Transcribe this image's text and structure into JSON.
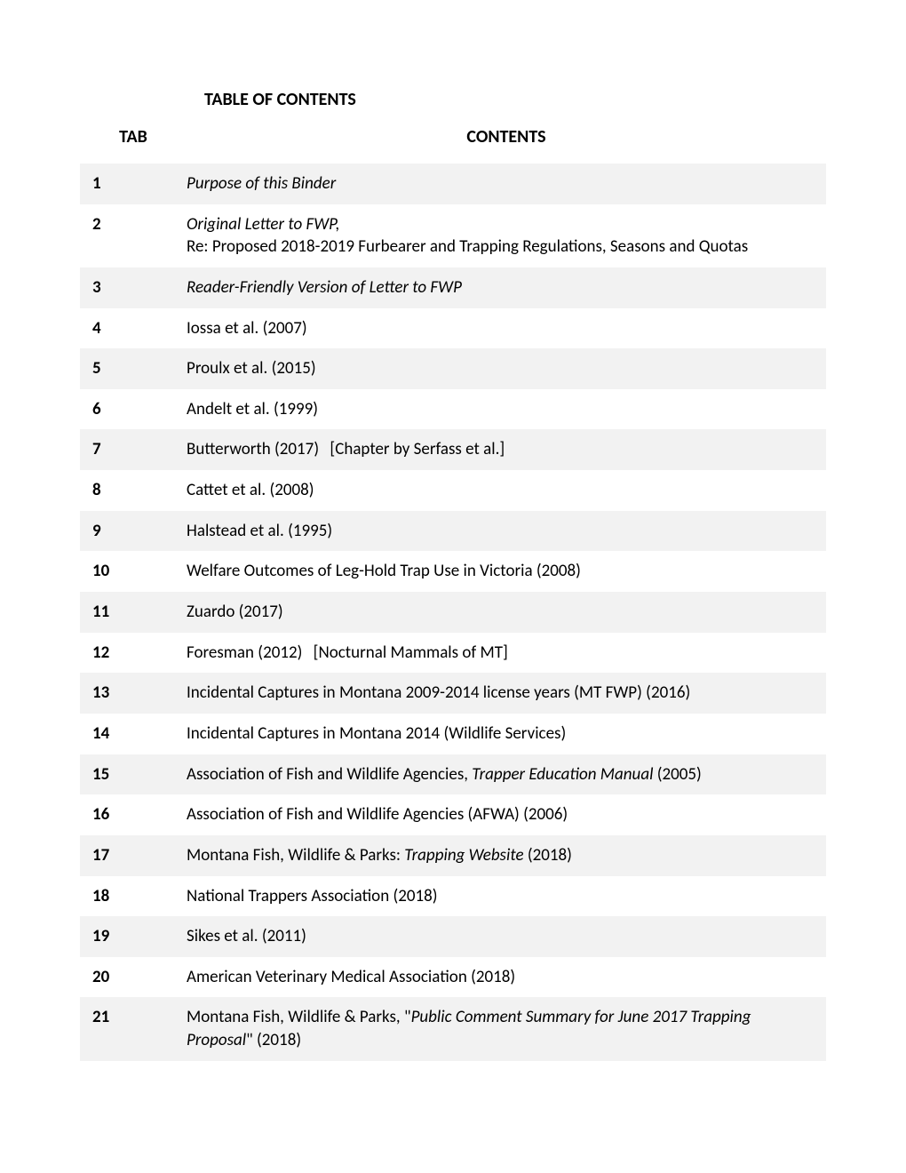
{
  "title": "TABLE OF CONTENTS",
  "headers": {
    "tab": "TAB",
    "contents": "CONTENTS"
  },
  "rows": [
    {
      "tab": "1",
      "shaded": true,
      "segments": [
        {
          "text": "Purpose of this Binder",
          "style": "italic"
        }
      ]
    },
    {
      "tab": "2",
      "shaded": false,
      "segments": [
        {
          "text": "Original Letter to FWP,",
          "style": "italic"
        },
        {
          "text": "\nRe: Proposed 2018-2019 Furbearer and Trapping Regulations, Seasons and Quotas"
        }
      ]
    },
    {
      "tab": "3",
      "shaded": true,
      "segments": [
        {
          "text": "Reader-Friendly Version of Letter to FWP",
          "style": "italic"
        }
      ]
    },
    {
      "tab": "4",
      "shaded": false,
      "segments": [
        {
          "text": "Iossa et al. (2007)"
        }
      ]
    },
    {
      "tab": "5",
      "shaded": true,
      "segments": [
        {
          "text": "Proulx et al. (2015)"
        }
      ]
    },
    {
      "tab": "6",
      "shaded": false,
      "segments": [
        {
          "text": "Andelt et al. (1999)"
        }
      ]
    },
    {
      "tab": "7",
      "shaded": true,
      "segments": [
        {
          "text": "Butterworth (2017)"
        },
        {
          "text": "   [Chapter by Serfass et al.]",
          "style": "bracket"
        }
      ]
    },
    {
      "tab": "8",
      "shaded": false,
      "segments": [
        {
          "text": "Cattet et al. (2008)"
        }
      ]
    },
    {
      "tab": "9",
      "shaded": true,
      "segments": [
        {
          "text": "Halstead et al. (1995)"
        }
      ]
    },
    {
      "tab": "10",
      "shaded": false,
      "segments": [
        {
          "text": "Welfare Outcomes of Leg-Hold Trap Use in Victoria (2008)"
        }
      ]
    },
    {
      "tab": "11",
      "shaded": true,
      "segments": [
        {
          "text": "Zuardo (2017)"
        }
      ]
    },
    {
      "tab": "12",
      "shaded": false,
      "segments": [
        {
          "text": "Foresman (2012)"
        },
        {
          "text": "   [Nocturnal Mammals of MT]",
          "style": "bracket"
        }
      ]
    },
    {
      "tab": "13",
      "shaded": true,
      "segments": [
        {
          "text": "Incidental Captures in Montana 2009-2014 license years (MT FWP) (2016)"
        }
      ]
    },
    {
      "tab": "14",
      "shaded": false,
      "segments": [
        {
          "text": "Incidental Captures in Montana 2014 (Wildlife Services)"
        }
      ]
    },
    {
      "tab": "15",
      "shaded": true,
      "segments": [
        {
          "text": "Association of Fish and Wildlife Agencies, "
        },
        {
          "text": "Trapper Education Manual",
          "style": "italic"
        },
        {
          "text": " (2005)"
        }
      ]
    },
    {
      "tab": "16",
      "shaded": false,
      "segments": [
        {
          "text": "Association of Fish and Wildlife Agencies (AFWA) (2006)"
        }
      ]
    },
    {
      "tab": "17",
      "shaded": true,
      "segments": [
        {
          "text": "Montana Fish, Wildlife & Parks: "
        },
        {
          "text": "Trapping Website",
          "style": "italic"
        },
        {
          "text": " (2018)"
        }
      ]
    },
    {
      "tab": "18",
      "shaded": false,
      "segments": [
        {
          "text": "National Trappers Association (2018)"
        }
      ]
    },
    {
      "tab": "19",
      "shaded": true,
      "segments": [
        {
          "text": "Sikes et al. (2011)"
        }
      ]
    },
    {
      "tab": "20",
      "shaded": false,
      "segments": [
        {
          "text": "American Veterinary Medical Association (2018)"
        }
      ]
    },
    {
      "tab": "21",
      "shaded": true,
      "segments": [
        {
          "text": "Montana Fish, Wildlife & Parks, \""
        },
        {
          "text": "Public Comment Summary for June 2017 Trapping Proposal",
          "style": "italic"
        },
        {
          "text": "\" (2018)"
        }
      ]
    }
  ]
}
